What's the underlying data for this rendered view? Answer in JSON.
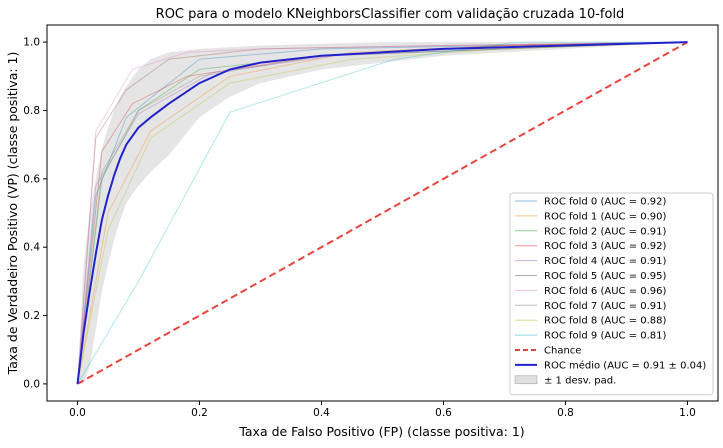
{
  "chart_data": {
    "type": "line",
    "title": "ROC para o modelo KNeighborsClassifier com validação cruzada 10-fold",
    "xlabel": "Taxa de Falso Positivo (FP) (classe positiva: 1)",
    "ylabel": "Taxa de Verdadeiro Positivo (VP) (classe positiva: 1)",
    "xlim": [
      -0.05,
      1.05
    ],
    "ylim": [
      -0.05,
      1.05
    ],
    "xticks": [
      "0.0",
      "0.2",
      "0.4",
      "0.6",
      "0.8",
      "1.0"
    ],
    "yticks": [
      "0.0",
      "0.2",
      "0.4",
      "0.6",
      "0.8",
      "1.0"
    ],
    "grid": false,
    "legend": "lower-right",
    "series": [
      {
        "name": "ROC fold 0 (AUC = 0.92)",
        "color": "#1f77b4",
        "x": [
          0,
          0.03,
          0.08,
          0.2,
          0.4,
          0.7,
          1
        ],
        "y": [
          0,
          0.55,
          0.78,
          0.95,
          0.98,
          0.99,
          1
        ]
      },
      {
        "name": "ROC fold 1 (AUC = 0.90)",
        "color": "#ff7f0e",
        "x": [
          0,
          0.05,
          0.12,
          0.25,
          0.45,
          0.7,
          1
        ],
        "y": [
          0,
          0.5,
          0.74,
          0.9,
          0.97,
          0.99,
          1
        ]
      },
      {
        "name": "ROC fold 2 (AUC = 0.91)",
        "color": "#2ca02c",
        "x": [
          0,
          0.04,
          0.1,
          0.2,
          0.4,
          0.7,
          1
        ],
        "y": [
          0,
          0.6,
          0.8,
          0.92,
          0.96,
          0.98,
          1
        ]
      },
      {
        "name": "ROC fold 3 (AUC = 0.92)",
        "color": "#d62728",
        "x": [
          0,
          0.04,
          0.09,
          0.18,
          0.4,
          0.7,
          1
        ],
        "y": [
          0,
          0.68,
          0.82,
          0.9,
          0.96,
          0.99,
          1
        ]
      },
      {
        "name": "ROC fold 4 (AUC = 0.91)",
        "color": "#9467bd",
        "x": [
          0,
          0.03,
          0.1,
          0.22,
          0.42,
          0.7,
          1
        ],
        "y": [
          0,
          0.58,
          0.79,
          0.91,
          0.96,
          0.98,
          1
        ]
      },
      {
        "name": "ROC fold 5 (AUC = 0.95)",
        "color": "#8c564b",
        "x": [
          0,
          0.03,
          0.08,
          0.15,
          0.3,
          0.6,
          1
        ],
        "y": [
          0,
          0.72,
          0.86,
          0.95,
          0.98,
          0.99,
          1
        ]
      },
      {
        "name": "ROC fold 6 (AUC = 0.96)",
        "color": "#e377c2",
        "x": [
          0,
          0.03,
          0.09,
          0.18,
          0.3,
          0.6,
          1
        ],
        "y": [
          0,
          0.74,
          0.92,
          0.97,
          0.98,
          0.99,
          1
        ]
      },
      {
        "name": "ROC fold 7 (AUC = 0.91)",
        "color": "#7f7f7f",
        "x": [
          0,
          0.04,
          0.1,
          0.2,
          0.4,
          0.7,
          1
        ],
        "y": [
          0,
          0.62,
          0.8,
          0.9,
          0.96,
          0.98,
          1
        ]
      },
      {
        "name": "ROC fold 8 (AUC = 0.88)",
        "color": "#bcbd22",
        "x": [
          0,
          0.05,
          0.12,
          0.25,
          0.45,
          0.7,
          1
        ],
        "y": [
          0,
          0.45,
          0.72,
          0.88,
          0.95,
          0.98,
          1
        ]
      },
      {
        "name": "ROC fold 9 (AUC = 0.81)",
        "color": "#17becf",
        "x": [
          0,
          0.1,
          0.25,
          0.52,
          0.72,
          1
        ],
        "y": [
          0,
          0.3,
          0.795,
          0.95,
          1,
          1
        ]
      }
    ],
    "chance": {
      "name": "Chance",
      "color": "#e8302a",
      "x": [
        0,
        1
      ],
      "y": [
        0,
        1
      ]
    },
    "mean": {
      "name": "ROC médio (AUC = 0.91 ± 0.04)",
      "color": "#2222cc",
      "x": [
        0,
        0.01,
        0.02,
        0.03,
        0.04,
        0.05,
        0.06,
        0.07,
        0.08,
        0.1,
        0.12,
        0.15,
        0.2,
        0.25,
        0.3,
        0.4,
        0.5,
        0.6,
        0.7,
        0.8,
        0.9,
        1
      ],
      "y": [
        0,
        0.15,
        0.27,
        0.38,
        0.48,
        0.55,
        0.61,
        0.66,
        0.7,
        0.75,
        0.78,
        0.82,
        0.88,
        0.92,
        0.94,
        0.96,
        0.97,
        0.98,
        0.985,
        0.99,
        0.995,
        1
      ]
    },
    "band": {
      "name": "± 1 desv. pad.",
      "color": "#cccccc",
      "x": [
        0,
        0.01,
        0.02,
        0.03,
        0.04,
        0.05,
        0.06,
        0.07,
        0.08,
        0.1,
        0.12,
        0.15,
        0.2,
        0.25,
        0.3,
        0.4,
        0.5,
        0.6,
        0.7,
        0.8,
        0.9,
        1
      ],
      "upper": [
        0,
        0.35,
        0.5,
        0.6,
        0.69,
        0.75,
        0.8,
        0.84,
        0.87,
        0.92,
        0.95,
        0.97,
        0.98,
        0.985,
        0.99,
        0.995,
        1,
        1,
        1,
        1,
        1,
        1
      ],
      "lower": [
        0,
        0.0,
        0.05,
        0.16,
        0.27,
        0.35,
        0.42,
        0.48,
        0.53,
        0.58,
        0.62,
        0.67,
        0.78,
        0.84,
        0.88,
        0.92,
        0.94,
        0.96,
        0.97,
        0.98,
        0.99,
        1
      ]
    }
  }
}
